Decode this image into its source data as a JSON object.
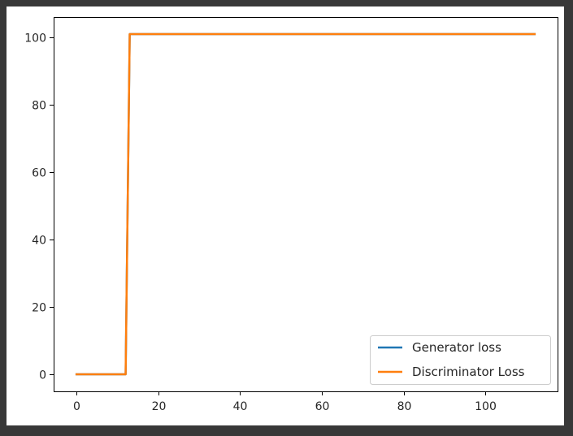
{
  "chart_data": {
    "type": "line",
    "title": "",
    "xlabel": "",
    "ylabel": "",
    "xlim": [
      -5.6,
      117.6
    ],
    "ylim": [
      -5.05,
      106.05
    ],
    "xticks": [
      0,
      20,
      40,
      60,
      80,
      100
    ],
    "yticks": [
      0,
      20,
      40,
      60,
      80,
      100
    ],
    "xtick_labels": [
      "0",
      "20",
      "40",
      "60",
      "80",
      "100"
    ],
    "ytick_labels": [
      "0",
      "20",
      "40",
      "60",
      "80",
      "100"
    ],
    "grid": false,
    "legend_position": "lower-right",
    "series": [
      {
        "name": "Generator loss",
        "color": "#1f77b4",
        "x": [
          0,
          12,
          13,
          112
        ],
        "y": [
          0,
          0,
          101,
          101
        ]
      },
      {
        "name": "Discriminator Loss",
        "color": "#ff7f0e",
        "x": [
          0,
          12,
          13,
          112
        ],
        "y": [
          0,
          0,
          101,
          101
        ]
      }
    ]
  }
}
